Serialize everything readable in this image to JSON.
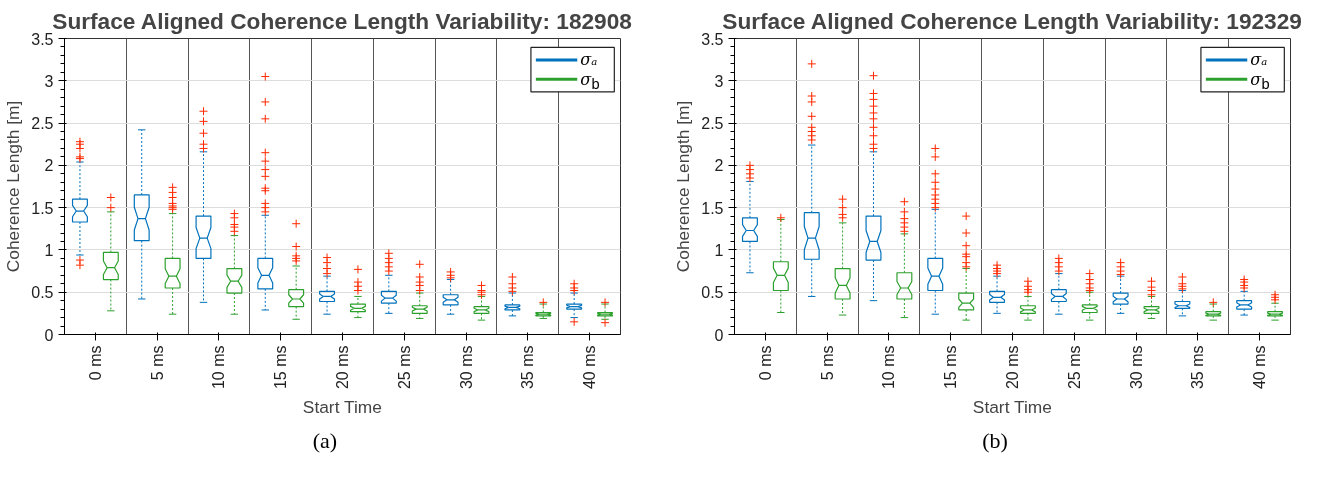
{
  "chart_data": [
    {
      "type": "box",
      "title": "Surface Aligned Coherence Length Variability: 182908",
      "xlabel": "Start Time",
      "ylabel": "Coherence Length [m]",
      "categories": [
        "0 ms",
        "5 ms",
        "10 ms",
        "15 ms",
        "20 ms",
        "25 ms",
        "30 ms",
        "35 ms",
        "40 ms"
      ],
      "ylim": [
        0,
        3.5
      ],
      "yticks": [
        0,
        0.5,
        1,
        1.5,
        2,
        2.5,
        3,
        3.5
      ],
      "grid": true,
      "legend": "top right",
      "annotations": [
        "(a)"
      ],
      "series": [
        {
          "name": "σₐ",
          "color": "#0072bd",
          "boxes": [
            {
              "low": 0.94,
              "q1": 1.33,
              "median": 1.46,
              "q3": 1.6,
              "high": 2.04,
              "outliers": [
                0.88,
                0.82,
                2.08,
                2.1,
                2.2,
                2.25,
                2.28
              ]
            },
            {
              "low": 0.42,
              "q1": 1.11,
              "median": 1.37,
              "q3": 1.65,
              "high": 2.42
            },
            {
              "low": 0.38,
              "q1": 0.9,
              "median": 1.14,
              "q3": 1.4,
              "high": 2.16,
              "outliers": [
                2.2,
                2.25,
                2.38,
                2.52,
                2.64
              ]
            },
            {
              "low": 0.29,
              "q1": 0.54,
              "median": 0.7,
              "q3": 0.9,
              "high": 1.41,
              "outliers": [
                1.45,
                1.5,
                1.55,
                1.7,
                1.73,
                1.87,
                1.95,
                2.05,
                2.15,
                2.55,
                2.75,
                3.05
              ]
            },
            {
              "low": 0.24,
              "q1": 0.39,
              "median": 0.45,
              "q3": 0.51,
              "high": 0.69,
              "outliers": [
                0.72,
                0.78,
                0.85,
                0.91
              ]
            },
            {
              "low": 0.25,
              "q1": 0.37,
              "median": 0.43,
              "q3": 0.51,
              "high": 0.7,
              "outliers": [
                0.75,
                0.8,
                0.85,
                0.9,
                0.96
              ]
            },
            {
              "low": 0.24,
              "q1": 0.35,
              "median": 0.41,
              "q3": 0.47,
              "high": 0.65,
              "outliers": [
                0.67,
                0.7,
                0.74
              ]
            },
            {
              "low": 0.22,
              "q1": 0.29,
              "median": 0.32,
              "q3": 0.35,
              "high": 0.49,
              "outliers": [
                0.51,
                0.55,
                0.6,
                0.68
              ]
            },
            {
              "low": 0.2,
              "q1": 0.3,
              "median": 0.33,
              "q3": 0.36,
              "high": 0.49,
              "outliers": [
                0.15,
                0.52,
                0.55,
                0.6
              ]
            }
          ]
        },
        {
          "name": "σ$_{b}$",
          "color": "#2ca02c",
          "boxes": [
            {
              "low": 0.28,
              "q1": 0.65,
              "median": 0.79,
              "q3": 0.97,
              "high": 1.45,
              "outliers": [
                1.5,
                1.62
              ]
            },
            {
              "low": 0.24,
              "q1": 0.55,
              "median": 0.69,
              "q3": 0.9,
              "high": 1.43,
              "outliers": [
                1.48,
                1.5,
                1.52,
                1.55,
                1.62,
                1.68,
                1.74
              ]
            },
            {
              "low": 0.24,
              "q1": 0.49,
              "median": 0.63,
              "q3": 0.78,
              "high": 1.17,
              "outliers": [
                1.22,
                1.27,
                1.3,
                1.38,
                1.43
              ]
            },
            {
              "low": 0.18,
              "q1": 0.33,
              "median": 0.42,
              "q3": 0.53,
              "high": 0.81,
              "outliers": [
                0.87,
                0.9,
                0.93,
                1.04,
                1.31
              ]
            },
            {
              "low": 0.2,
              "q1": 0.27,
              "median": 0.31,
              "q3": 0.36,
              "high": 0.45,
              "outliers": [
                0.52,
                0.57,
                0.62,
                0.77
              ]
            },
            {
              "low": 0.19,
              "q1": 0.25,
              "median": 0.3,
              "q3": 0.34,
              "high": 0.49,
              "outliers": [
                0.52,
                0.58,
                0.62,
                0.68,
                0.83
              ]
            },
            {
              "low": 0.17,
              "q1": 0.25,
              "median": 0.29,
              "q3": 0.33,
              "high": 0.45,
              "outliers": [
                0.47,
                0.5,
                0.52,
                0.58
              ]
            },
            {
              "low": 0.19,
              "q1": 0.22,
              "median": 0.24,
              "q3": 0.26,
              "high": 0.36,
              "outliers": [
                0.38
              ]
            },
            {
              "low": 0.18,
              "q1": 0.22,
              "median": 0.24,
              "q3": 0.26,
              "high": 0.36,
              "outliers": [
                0.14,
                0.38
              ]
            }
          ]
        }
      ]
    },
    {
      "type": "box",
      "title": "Surface Aligned Coherence Length Variability: 192329",
      "xlabel": "Start Time",
      "ylabel": "Coherence Length [m]",
      "categories": [
        "0 ms",
        "5 ms",
        "10 ms",
        "15 ms",
        "20 ms",
        "25 ms",
        "30 ms",
        "35 ms",
        "40 ms"
      ],
      "ylim": [
        0,
        3.5
      ],
      "yticks": [
        0,
        0.5,
        1,
        1.5,
        2,
        2.5,
        3,
        3.5
      ],
      "grid": true,
      "legend": "top right",
      "annotations": [
        "(b)"
      ],
      "series": [
        {
          "name": "σₐ",
          "color": "#0072bd",
          "boxes": [
            {
              "low": 0.73,
              "q1": 1.1,
              "median": 1.23,
              "q3": 1.38,
              "high": 1.81,
              "outliers": [
                1.85,
                1.9,
                1.95,
                2.0
              ]
            },
            {
              "low": 0.45,
              "q1": 0.89,
              "median": 1.14,
              "q3": 1.44,
              "high": 2.24,
              "outliers": [
                2.3,
                2.35,
                2.4,
                2.45,
                2.58,
                2.75,
                2.82,
                3.2
              ]
            },
            {
              "low": 0.4,
              "q1": 0.88,
              "median": 1.1,
              "q3": 1.4,
              "high": 2.16,
              "outliers": [
                2.2,
                2.25,
                2.35,
                2.45,
                2.55,
                2.62,
                2.7,
                2.78,
                2.85,
                3.06
              ]
            },
            {
              "low": 0.24,
              "q1": 0.52,
              "median": 0.69,
              "q3": 0.9,
              "high": 1.48,
              "outliers": [
                1.5,
                1.55,
                1.6,
                1.65,
                1.72,
                1.8,
                1.9,
                2.1,
                2.2
              ]
            },
            {
              "low": 0.25,
              "q1": 0.38,
              "median": 0.44,
              "q3": 0.51,
              "high": 0.69,
              "outliers": [
                0.72,
                0.75,
                0.78,
                0.82
              ]
            },
            {
              "low": 0.24,
              "q1": 0.39,
              "median": 0.45,
              "q3": 0.53,
              "high": 0.72,
              "outliers": [
                0.75,
                0.8,
                0.85,
                0.9
              ]
            },
            {
              "low": 0.25,
              "q1": 0.36,
              "median": 0.42,
              "q3": 0.49,
              "high": 0.69,
              "outliers": [
                0.71,
                0.75,
                0.8,
                0.85
              ]
            },
            {
              "low": 0.22,
              "q1": 0.31,
              "median": 0.34,
              "q3": 0.39,
              "high": 0.52,
              "outliers": [
                0.54,
                0.57,
                0.6,
                0.68
              ]
            },
            {
              "low": 0.23,
              "q1": 0.3,
              "median": 0.35,
              "q3": 0.4,
              "high": 0.51,
              "outliers": [
                0.55,
                0.58,
                0.62,
                0.65
              ]
            }
          ]
        },
        {
          "name": "σ$_{b}$",
          "color": "#2ca02c",
          "boxes": [
            {
              "low": 0.26,
              "q1": 0.52,
              "median": 0.7,
              "q3": 0.86,
              "high": 1.36,
              "outliers": [
                1.38
              ]
            },
            {
              "low": 0.23,
              "q1": 0.42,
              "median": 0.58,
              "q3": 0.78,
              "high": 1.32,
              "outliers": [
                1.38,
                1.42,
                1.5,
                1.6
              ]
            },
            {
              "low": 0.2,
              "q1": 0.42,
              "median": 0.55,
              "q3": 0.73,
              "high": 1.19,
              "outliers": [
                1.22,
                1.27,
                1.32,
                1.37,
                1.45,
                1.57
              ]
            },
            {
              "low": 0.17,
              "q1": 0.29,
              "median": 0.37,
              "q3": 0.49,
              "high": 0.78,
              "outliers": [
                0.8,
                0.85,
                0.92,
                0.95,
                1.05,
                1.2,
                1.4
              ]
            },
            {
              "low": 0.17,
              "q1": 0.25,
              "median": 0.29,
              "q3": 0.34,
              "high": 0.45,
              "outliers": [
                0.5,
                0.53,
                0.57,
                0.63
              ]
            },
            {
              "low": 0.17,
              "q1": 0.26,
              "median": 0.31,
              "q3": 0.35,
              "high": 0.5,
              "outliers": [
                0.52,
                0.55,
                0.6,
                0.65,
                0.72
              ]
            },
            {
              "low": 0.19,
              "q1": 0.25,
              "median": 0.29,
              "q3": 0.33,
              "high": 0.45,
              "outliers": [
                0.47,
                0.52,
                0.56,
                0.63
              ]
            },
            {
              "low": 0.17,
              "q1": 0.22,
              "median": 0.24,
              "q3": 0.27,
              "high": 0.36,
              "outliers": [
                0.38
              ]
            },
            {
              "low": 0.17,
              "q1": 0.22,
              "median": 0.24,
              "q3": 0.27,
              "high": 0.37,
              "outliers": [
                0.41,
                0.44,
                0.47
              ]
            }
          ]
        }
      ]
    }
  ]
}
